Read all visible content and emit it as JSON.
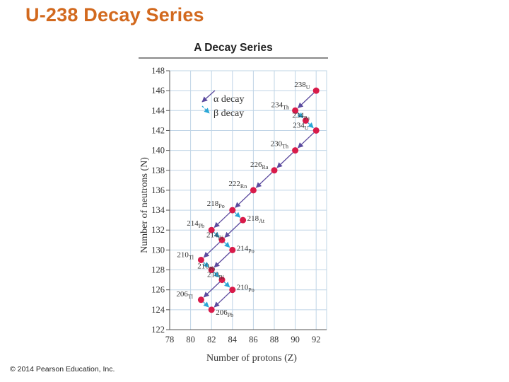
{
  "slide": {
    "title": "U-238 Decay Series",
    "copyright": "© 2014 Pearson Education, Inc."
  },
  "colors": {
    "title": "#d2691e",
    "alpha_arrow": "#5b4a9e",
    "beta_arrow": "#2aa7d6",
    "point": "#d81b4a",
    "grid": "#bfd4e6"
  },
  "chart_data": {
    "type": "scatter",
    "title": "A Decay Series",
    "xlabel": "Number of protons (Z)",
    "ylabel": "Number of neutrons (N)",
    "xlim": [
      78,
      93
    ],
    "ylim": [
      122,
      148
    ],
    "x_ticks": [
      78,
      80,
      82,
      84,
      86,
      88,
      90,
      92
    ],
    "y_ticks": [
      122,
      124,
      126,
      128,
      130,
      132,
      134,
      136,
      138,
      140,
      142,
      144,
      146,
      148
    ],
    "grid": true,
    "legend_position": "top-left",
    "legend": [
      {
        "label": "α decay",
        "type": "alpha"
      },
      {
        "label": "β decay",
        "type": "beta"
      }
    ],
    "nuclides": [
      {
        "mass": "238",
        "symbol": "U",
        "z": 92,
        "n": 146
      },
      {
        "mass": "234",
        "symbol": "Th",
        "z": 90,
        "n": 144
      },
      {
        "mass": "234",
        "symbol": "Pa",
        "z": 91,
        "n": 143
      },
      {
        "mass": "234",
        "symbol": "U",
        "z": 92,
        "n": 142
      },
      {
        "mass": "230",
        "symbol": "Th",
        "z": 90,
        "n": 140
      },
      {
        "mass": "226",
        "symbol": "Ra",
        "z": 88,
        "n": 138
      },
      {
        "mass": "222",
        "symbol": "Rn",
        "z": 86,
        "n": 136
      },
      {
        "mass": "218",
        "symbol": "Po",
        "z": 84,
        "n": 134
      },
      {
        "mass": "218",
        "symbol": "At",
        "z": 85,
        "n": 133
      },
      {
        "mass": "214",
        "symbol": "Pb",
        "z": 82,
        "n": 132
      },
      {
        "mass": "214",
        "symbol": "Bi",
        "z": 83,
        "n": 131
      },
      {
        "mass": "214",
        "symbol": "Po",
        "z": 84,
        "n": 130
      },
      {
        "mass": "210",
        "symbol": "Tl",
        "z": 81,
        "n": 129
      },
      {
        "mass": "210",
        "symbol": "Pb",
        "z": 82,
        "n": 128
      },
      {
        "mass": "210",
        "symbol": "Bi",
        "z": 83,
        "n": 127
      },
      {
        "mass": "210",
        "symbol": "Po",
        "z": 84,
        "n": 126
      },
      {
        "mass": "206",
        "symbol": "Tl",
        "z": 81,
        "n": 125
      },
      {
        "mass": "206",
        "symbol": "Pb",
        "z": 82,
        "n": 124
      }
    ],
    "decays": [
      {
        "from": [
          92,
          146
        ],
        "to": [
          90,
          144
        ],
        "type": "alpha"
      },
      {
        "from": [
          90,
          144
        ],
        "to": [
          91,
          143
        ],
        "type": "beta"
      },
      {
        "from": [
          91,
          143
        ],
        "to": [
          92,
          142
        ],
        "type": "beta"
      },
      {
        "from": [
          92,
          142
        ],
        "to": [
          90,
          140
        ],
        "type": "alpha"
      },
      {
        "from": [
          90,
          140
        ],
        "to": [
          88,
          138
        ],
        "type": "alpha"
      },
      {
        "from": [
          88,
          138
        ],
        "to": [
          86,
          136
        ],
        "type": "alpha"
      },
      {
        "from": [
          86,
          136
        ],
        "to": [
          84,
          134
        ],
        "type": "alpha"
      },
      {
        "from": [
          84,
          134
        ],
        "to": [
          82,
          132
        ],
        "type": "alpha"
      },
      {
        "from": [
          84,
          134
        ],
        "to": [
          85,
          133
        ],
        "type": "beta"
      },
      {
        "from": [
          85,
          133
        ],
        "to": [
          83,
          131
        ],
        "type": "alpha"
      },
      {
        "from": [
          82,
          132
        ],
        "to": [
          83,
          131
        ],
        "type": "beta"
      },
      {
        "from": [
          83,
          131
        ],
        "to": [
          84,
          130
        ],
        "type": "beta"
      },
      {
        "from": [
          83,
          131
        ],
        "to": [
          81,
          129
        ],
        "type": "alpha"
      },
      {
        "from": [
          84,
          130
        ],
        "to": [
          82,
          128
        ],
        "type": "alpha"
      },
      {
        "from": [
          81,
          129
        ],
        "to": [
          82,
          128
        ],
        "type": "beta"
      },
      {
        "from": [
          82,
          128
        ],
        "to": [
          83,
          127
        ],
        "type": "beta"
      },
      {
        "from": [
          83,
          127
        ],
        "to": [
          84,
          126
        ],
        "type": "beta"
      },
      {
        "from": [
          83,
          127
        ],
        "to": [
          81,
          125
        ],
        "type": "alpha"
      },
      {
        "from": [
          84,
          126
        ],
        "to": [
          82,
          124
        ],
        "type": "alpha"
      },
      {
        "from": [
          81,
          125
        ],
        "to": [
          82,
          124
        ],
        "type": "beta"
      }
    ]
  }
}
